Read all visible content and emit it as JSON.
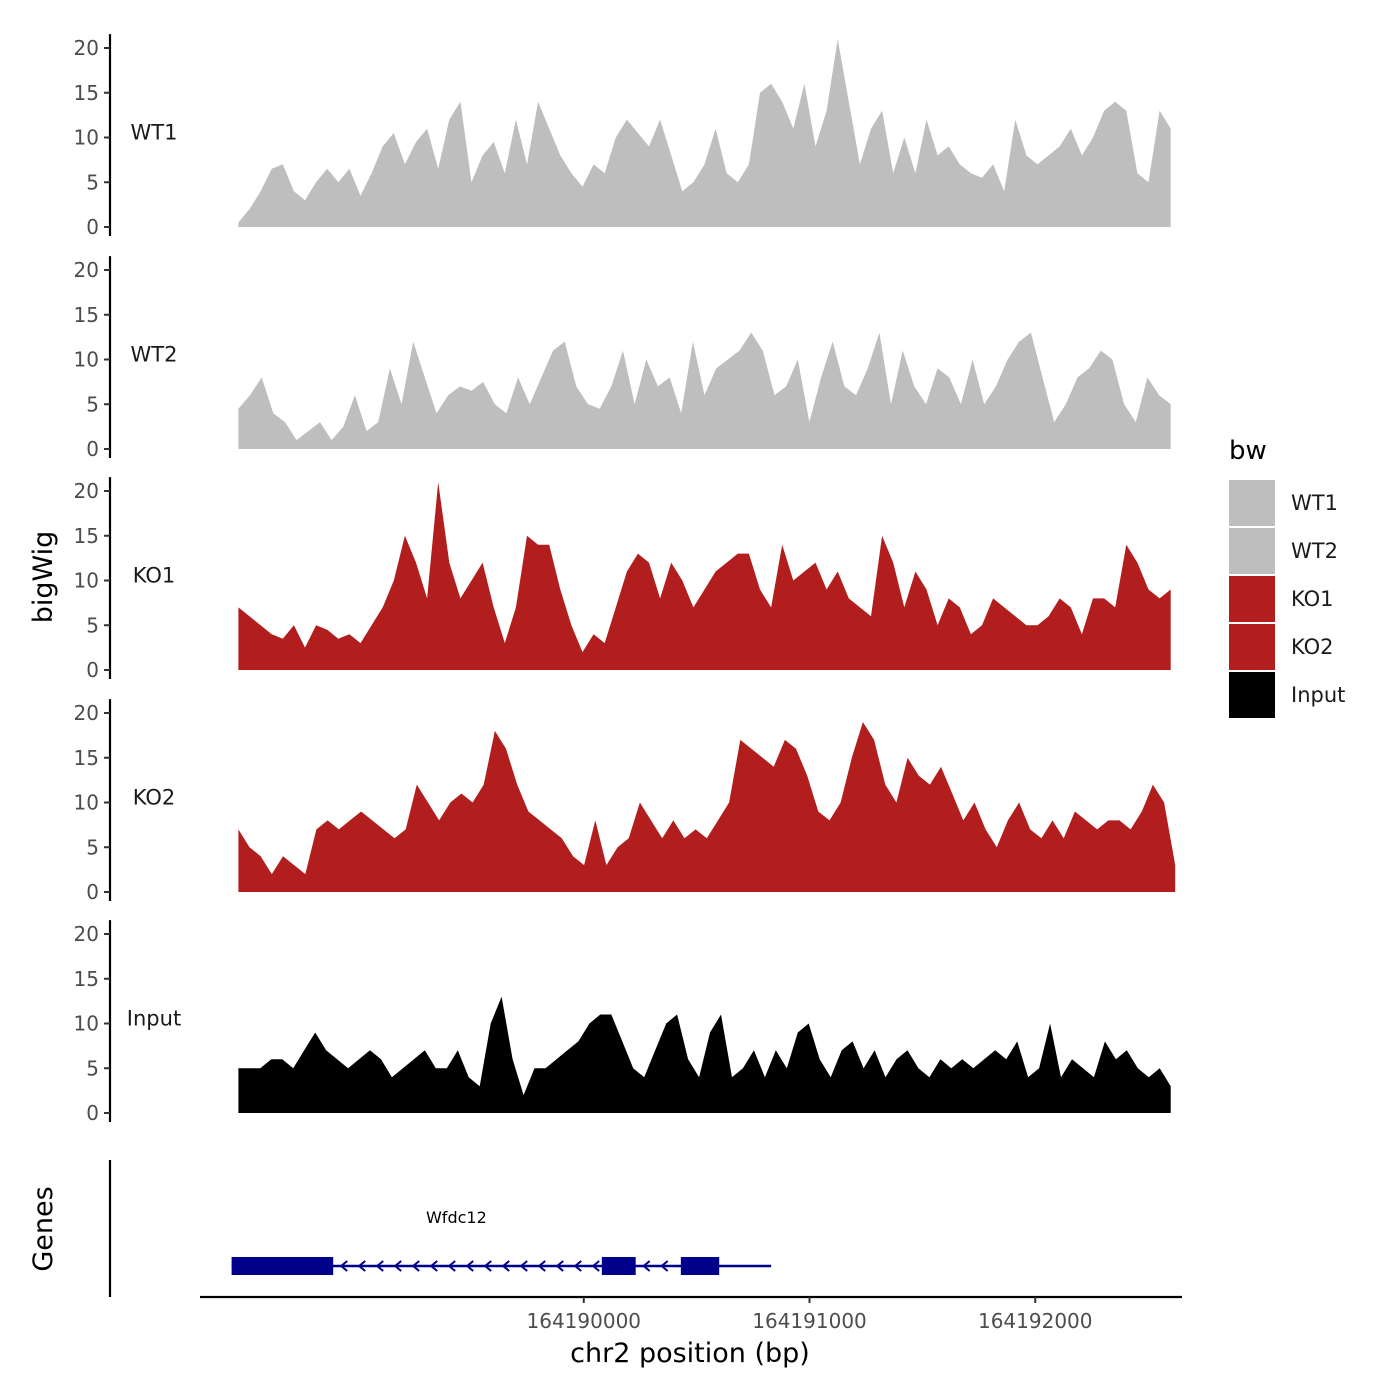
{
  "chart_data": {
    "type": "area",
    "y_axis_title": "bigWig",
    "x_axis_title": "chr2 position (bp)",
    "genes_axis_title": "Genes",
    "xlim": [
      164188300,
      164192650
    ],
    "x_ticks": [
      164190000,
      164191000,
      164192000
    ],
    "x_tick_labels": [
      "164190000",
      "164191000",
      "164192000"
    ],
    "ylim": [
      0,
      22
    ],
    "y_ticks": [
      0,
      5,
      10,
      15,
      20
    ],
    "y_tick_labels": [
      "0",
      "5",
      "10",
      "15",
      "20"
    ],
    "legend": {
      "title": "bw",
      "items": [
        {
          "label": "WT1",
          "color": "#bebebe"
        },
        {
          "label": "WT2",
          "color": "#bebebe"
        },
        {
          "label": "KO1",
          "color": "#b21e1e"
        },
        {
          "label": "KO2",
          "color": "#b21e1e"
        },
        {
          "label": "Input",
          "color": "#000000"
        }
      ]
    },
    "series": [
      {
        "name": "WT1",
        "color": "#bebebe",
        "x_start": 164188470,
        "x_end": 164192600,
        "values": [
          0.5,
          2,
          4,
          6.5,
          7,
          4,
          3,
          5,
          6.5,
          5,
          6.5,
          3.5,
          6,
          9,
          10.5,
          7,
          9.5,
          11,
          6.5,
          12,
          14,
          5,
          8,
          9.5,
          6,
          12,
          7,
          14,
          11,
          8,
          6,
          4.5,
          7,
          6,
          10,
          12,
          10.5,
          9,
          12,
          8,
          4,
          5,
          7,
          11,
          6,
          5,
          7,
          15,
          16,
          14,
          11,
          16,
          9,
          13,
          21,
          14,
          7,
          11,
          13,
          6,
          10,
          6,
          12,
          8,
          9,
          7,
          6,
          5.5,
          7,
          4,
          12,
          8,
          7,
          8,
          9,
          11,
          8,
          10,
          13,
          14,
          13,
          6,
          5,
          13,
          11
        ]
      },
      {
        "name": "WT2",
        "color": "#bebebe",
        "x_start": 164188470,
        "x_end": 164192600,
        "values": [
          4.5,
          6,
          8,
          4,
          3,
          1,
          2,
          3,
          1,
          2.5,
          6,
          2,
          3,
          9,
          5,
          12,
          8,
          4,
          6,
          7,
          6.5,
          7.5,
          5,
          4,
          8,
          5,
          8,
          11,
          12,
          7,
          5,
          4.5,
          7,
          11,
          5,
          10,
          7,
          8,
          4,
          12,
          6,
          9,
          10,
          11,
          13,
          11,
          6,
          7,
          10,
          3,
          8,
          12,
          7,
          6,
          9,
          13,
          5,
          11,
          7,
          5,
          9,
          8,
          5,
          10,
          5,
          7,
          10,
          12,
          13,
          8,
          3,
          5,
          8,
          9,
          11,
          10,
          5,
          3,
          8,
          6,
          5
        ]
      },
      {
        "name": "KO1",
        "color": "#b21e1e",
        "x_start": 164188470,
        "x_end": 164192600,
        "values": [
          7,
          6,
          5,
          4,
          3.5,
          5,
          2.5,
          5,
          4.5,
          3.5,
          4,
          3,
          5,
          7,
          10,
          15,
          12,
          8,
          21,
          12,
          8,
          10,
          12,
          7,
          3,
          7,
          15,
          14,
          14,
          9,
          5,
          2,
          4,
          3,
          7,
          11,
          13,
          12,
          8,
          12,
          10,
          7,
          9,
          11,
          12,
          13,
          13,
          9,
          7,
          14,
          10,
          11,
          12,
          9,
          11,
          8,
          7,
          6,
          15,
          12,
          7,
          11,
          9,
          5,
          8,
          7,
          4,
          5,
          8,
          7,
          6,
          5,
          5,
          6,
          8,
          7,
          4,
          8,
          8,
          7,
          14,
          12,
          9,
          8,
          9
        ]
      },
      {
        "name": "KO2",
        "color": "#b21e1e",
        "x_start": 164188470,
        "x_end": 164192620,
        "values": [
          7,
          5,
          4,
          2,
          4,
          3,
          2,
          7,
          8,
          7,
          8,
          9,
          8,
          7,
          6,
          7,
          12,
          10,
          8,
          10,
          11,
          10,
          12,
          18,
          16,
          12,
          9,
          8,
          7,
          6,
          4,
          3,
          8,
          3,
          5,
          6,
          10,
          8,
          6,
          8,
          6,
          7,
          6,
          8,
          10,
          17,
          16,
          15,
          14,
          17,
          16,
          13,
          9,
          8,
          10,
          15,
          19,
          17,
          12,
          10,
          15,
          13,
          12,
          14,
          11,
          8,
          10,
          7,
          5,
          8,
          10,
          7,
          6,
          8,
          6,
          9,
          8,
          7,
          8,
          8,
          7,
          9,
          12,
          10,
          3
        ]
      },
      {
        "name": "Input",
        "color": "#000000",
        "x_start": 164188470,
        "x_end": 164192600,
        "values": [
          5,
          5,
          5,
          6,
          6,
          5,
          7,
          9,
          7,
          6,
          5,
          6,
          7,
          6,
          4,
          5,
          6,
          7,
          5,
          5,
          7,
          4,
          3,
          10,
          13,
          6,
          2,
          5,
          5,
          6,
          7,
          8,
          10,
          11,
          11,
          8,
          5,
          4,
          7,
          10,
          11,
          6,
          4,
          9,
          11,
          4,
          5,
          7,
          4,
          7,
          5,
          9,
          10,
          6,
          4,
          7,
          8,
          5,
          7,
          4,
          6,
          7,
          5,
          4,
          6,
          5,
          6,
          5,
          6,
          7,
          6,
          8,
          4,
          5,
          10,
          4,
          6,
          5,
          4,
          8,
          6,
          7,
          5,
          4,
          5,
          3
        ]
      }
    ],
    "genes": [
      {
        "name": "Wfdc12",
        "strand": "-",
        "start": 164188440,
        "end": 164190830,
        "exons": [
          [
            164188440,
            164188890
          ],
          [
            164190080,
            164190230
          ],
          [
            164190430,
            164190600
          ]
        ]
      }
    ]
  }
}
